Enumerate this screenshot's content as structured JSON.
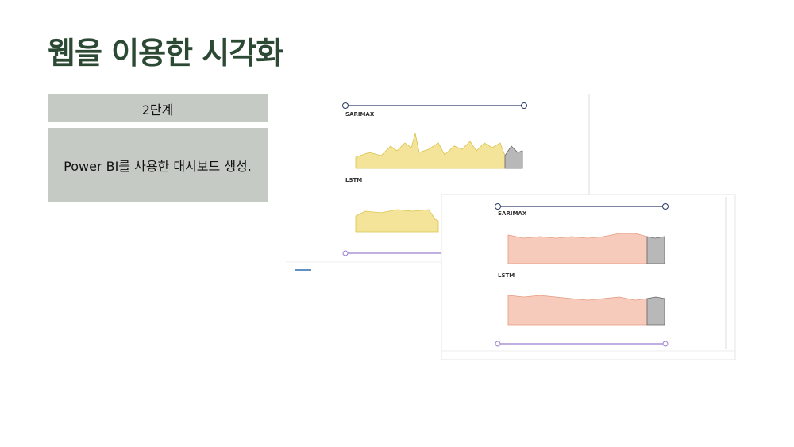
{
  "header": {
    "title": "웹을 이용한 시각화"
  },
  "steps": {
    "label": "2단계",
    "description": "Power BI를 사용한 대시보드 생성."
  },
  "screenshots": [
    {
      "chart1": "SARIMAX",
      "chart2": "LSTM"
    },
    {
      "chart1": "SARIMAX",
      "chart2": "LSTM"
    }
  ]
}
